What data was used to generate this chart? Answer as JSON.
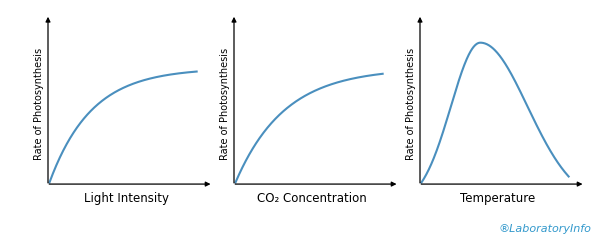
{
  "background_color": "#ffffff",
  "line_color": "#4a8fbe",
  "line_width": 1.5,
  "ylabel": "Rate of Photosynthesis",
  "xlabels": [
    "Light Intensity",
    "CO₂ Concentration",
    "Temperature"
  ],
  "ylabel_fontsize": 7,
  "xlabel_fontsize": 8.5,
  "watermark_text": "LaboratoryInfo",
  "watermark_icon": "®",
  "watermark_color": "#3399cc",
  "watermark_fontsize": 8
}
